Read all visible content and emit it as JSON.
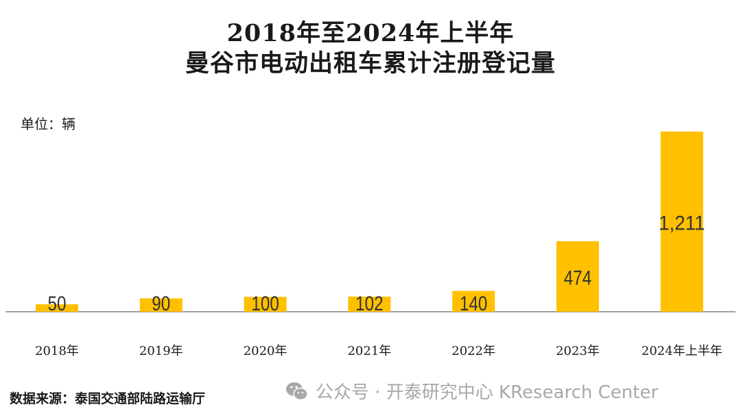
{
  "header": {
    "title_line1": "2018年至2024年上半年",
    "title_line2": "曼谷市电动出租车累计注册登记量"
  },
  "unit_label": "单位：辆",
  "source": "数据来源：泰国交通部陆路运输厅",
  "watermark": {
    "text": "公众号 · 开泰研究中心 KResearch Center",
    "icon": "wechat-icon"
  },
  "colors": {
    "bar": "#FFC000",
    "axis": "#a0a0a0"
  },
  "chart_data": {
    "type": "bar",
    "title": "2018年至2024年上半年 曼谷市电动出租车累计注册登记量",
    "ylabel": "单位：辆",
    "xlabel": "",
    "categories": [
      "2018年",
      "2019年",
      "2020年",
      "2021年",
      "2022年",
      "2023年",
      "2024年上半年"
    ],
    "values": [
      50,
      90,
      100,
      102,
      140,
      474,
      1211
    ],
    "value_labels": [
      "50",
      "90",
      "100",
      "102",
      "140",
      "474",
      "1,211"
    ],
    "ylim": [
      0,
      1211
    ],
    "grid": false,
    "legend": "none"
  }
}
